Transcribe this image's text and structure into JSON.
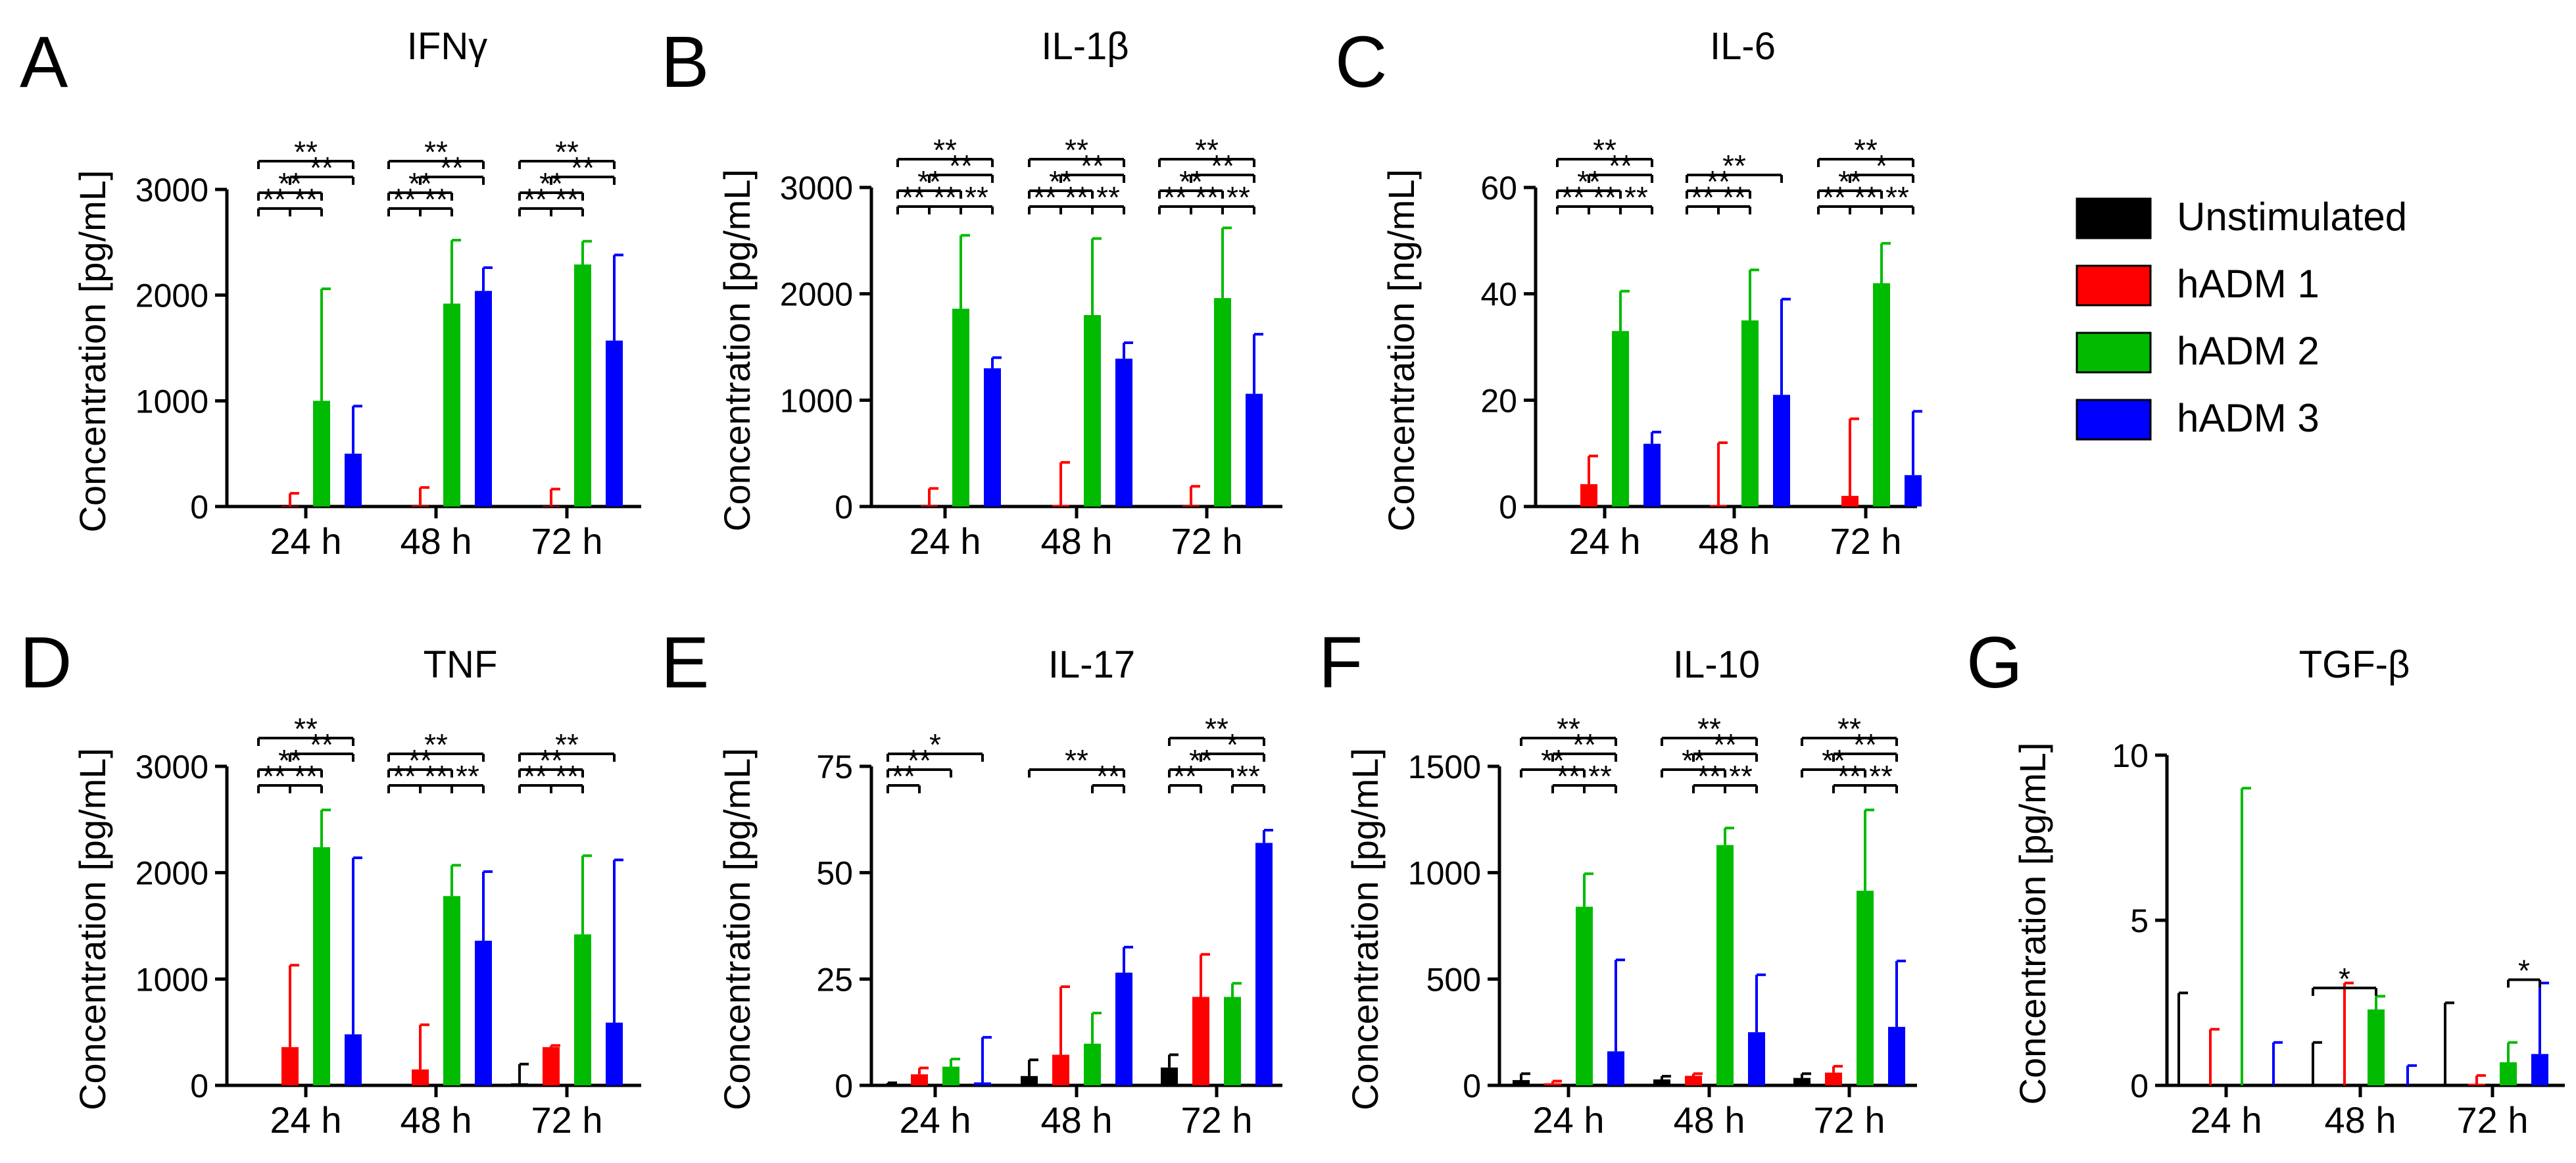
{
  "colors": {
    "unstimulated": "#000000",
    "hadm1": "#ff0000",
    "hadm2": "#00bb00",
    "hadm3": "#0000ff"
  },
  "legend": {
    "items": [
      {
        "label": "Unstimulated",
        "color_key": "unstimulated"
      },
      {
        "label": "hADM 1",
        "color_key": "hadm1"
      },
      {
        "label": "hADM 2",
        "color_key": "hadm2"
      },
      {
        "label": "hADM 3",
        "color_key": "hadm3"
      }
    ]
  },
  "chart_data": [
    {
      "panel": "A",
      "title": "IFNγ",
      "type": "bar",
      "ylabel": "Concentration [pg/mL]",
      "ylim": [
        0,
        3000
      ],
      "yticks": [
        0,
        1000,
        2000,
        3000
      ],
      "categories": [
        "24 h",
        "48 h",
        "72 h"
      ],
      "series": [
        {
          "name": "Unstimulated",
          "values": [
            0,
            0,
            0
          ],
          "errors": [
            0,
            0,
            0
          ]
        },
        {
          "name": "hADM 1",
          "values": [
            5,
            10,
            5
          ],
          "errors": [
            120,
            170,
            160
          ]
        },
        {
          "name": "hADM 2",
          "values": [
            1000,
            1920,
            2290
          ],
          "errors": [
            1060,
            600,
            220
          ]
        },
        {
          "name": "hADM 3",
          "values": [
            500,
            2040,
            1570
          ],
          "errors": [
            450,
            220,
            810
          ]
        }
      ],
      "significance": [
        {
          "group": 0,
          "from": 0,
          "to": 3,
          "label": "**"
        },
        {
          "group": 0,
          "from": 0,
          "to": 2,
          "label": "**"
        },
        {
          "group": 0,
          "from": 1,
          "to": 3,
          "label": "**"
        },
        {
          "group": 0,
          "from": 1,
          "to": 2,
          "label": "**"
        },
        {
          "group": 0,
          "from": 0,
          "to": 1,
          "label": "**"
        },
        {
          "group": 1,
          "from": 0,
          "to": 3,
          "label": "**"
        },
        {
          "group": 1,
          "from": 0,
          "to": 2,
          "label": "**"
        },
        {
          "group": 1,
          "from": 1,
          "to": 3,
          "label": "**"
        },
        {
          "group": 1,
          "from": 1,
          "to": 2,
          "label": "**"
        },
        {
          "group": 1,
          "from": 0,
          "to": 1,
          "label": "**"
        },
        {
          "group": 2,
          "from": 0,
          "to": 3,
          "label": "**"
        },
        {
          "group": 2,
          "from": 0,
          "to": 2,
          "label": "**"
        },
        {
          "group": 2,
          "from": 1,
          "to": 3,
          "label": "**"
        },
        {
          "group": 2,
          "from": 1,
          "to": 2,
          "label": "**"
        },
        {
          "group": 2,
          "from": 0,
          "to": 1,
          "label": "**"
        }
      ]
    },
    {
      "panel": "B",
      "title": "IL-1β",
      "type": "bar",
      "ylabel": "Concentration [pg/mL]",
      "ylim": [
        0,
        3000
      ],
      "yticks": [
        0,
        1000,
        2000,
        3000
      ],
      "categories": [
        "24 h",
        "48 h",
        "72 h"
      ],
      "series": [
        {
          "name": "Unstimulated",
          "values": [
            0,
            0,
            0
          ],
          "errors": [
            0,
            0,
            0
          ]
        },
        {
          "name": "hADM 1",
          "values": [
            10,
            15,
            10
          ],
          "errors": [
            160,
            400,
            180
          ]
        },
        {
          "name": "hADM 2",
          "values": [
            1860,
            1800,
            1960
          ],
          "errors": [
            690,
            720,
            660
          ]
        },
        {
          "name": "hADM 3",
          "values": [
            1300,
            1390,
            1060
          ],
          "errors": [
            100,
            150,
            560
          ]
        }
      ],
      "significance": [
        {
          "group": 0,
          "from": 0,
          "to": 3,
          "label": "**"
        },
        {
          "group": 0,
          "from": 0,
          "to": 2,
          "label": "**"
        },
        {
          "group": 0,
          "from": 1,
          "to": 3,
          "label": "**"
        },
        {
          "group": 0,
          "from": 1,
          "to": 2,
          "label": "**"
        },
        {
          "group": 0,
          "from": 0,
          "to": 1,
          "label": "**"
        },
        {
          "group": 0,
          "from": 2,
          "to": 3,
          "label": "**"
        },
        {
          "group": 1,
          "from": 0,
          "to": 3,
          "label": "**"
        },
        {
          "group": 1,
          "from": 0,
          "to": 2,
          "label": "**"
        },
        {
          "group": 1,
          "from": 1,
          "to": 3,
          "label": "**"
        },
        {
          "group": 1,
          "from": 1,
          "to": 2,
          "label": "**"
        },
        {
          "group": 1,
          "from": 0,
          "to": 1,
          "label": "**"
        },
        {
          "group": 1,
          "from": 2,
          "to": 3,
          "label": "**"
        },
        {
          "group": 2,
          "from": 0,
          "to": 3,
          "label": "**"
        },
        {
          "group": 2,
          "from": 0,
          "to": 2,
          "label": "**"
        },
        {
          "group": 2,
          "from": 1,
          "to": 3,
          "label": "**"
        },
        {
          "group": 2,
          "from": 1,
          "to": 2,
          "label": "**"
        },
        {
          "group": 2,
          "from": 0,
          "to": 1,
          "label": "**"
        },
        {
          "group": 2,
          "from": 2,
          "to": 3,
          "label": "**"
        }
      ]
    },
    {
      "panel": "C",
      "title": "IL-6",
      "type": "bar",
      "ylabel": "Concentration [ng/mL]",
      "ylim": [
        0,
        60
      ],
      "yticks": [
        0,
        20,
        40,
        60
      ],
      "categories": [
        "24 h",
        "48 h",
        "72 h"
      ],
      "series": [
        {
          "name": "Unstimulated",
          "values": [
            0,
            0,
            0
          ],
          "errors": [
            0,
            0,
            0
          ]
        },
        {
          "name": "hADM 1",
          "values": [
            4.2,
            0.3,
            2.0
          ],
          "errors": [
            5.3,
            11.7,
            14.5
          ]
        },
        {
          "name": "hADM 2",
          "values": [
            33,
            35,
            42
          ],
          "errors": [
            7.5,
            9.5,
            7.5
          ]
        },
        {
          "name": "hADM 3",
          "values": [
            11.8,
            21,
            5.9
          ],
          "errors": [
            2.2,
            18,
            12
          ]
        }
      ],
      "significance": [
        {
          "group": 0,
          "from": 0,
          "to": 3,
          "label": "**"
        },
        {
          "group": 0,
          "from": 0,
          "to": 2,
          "label": "**"
        },
        {
          "group": 0,
          "from": 1,
          "to": 3,
          "label": "**"
        },
        {
          "group": 0,
          "from": 1,
          "to": 2,
          "label": "**"
        },
        {
          "group": 0,
          "from": 0,
          "to": 1,
          "label": "**"
        },
        {
          "group": 0,
          "from": 2,
          "to": 3,
          "label": "**"
        },
        {
          "group": 1,
          "from": 0,
          "to": 3,
          "label": "**"
        },
        {
          "group": 1,
          "from": 0,
          "to": 2,
          "label": "**"
        },
        {
          "group": 1,
          "from": 1,
          "to": 2,
          "label": "**"
        },
        {
          "group": 1,
          "from": 0,
          "to": 1,
          "label": "**"
        },
        {
          "group": 2,
          "from": 0,
          "to": 3,
          "label": "**"
        },
        {
          "group": 2,
          "from": 0,
          "to": 2,
          "label": "**"
        },
        {
          "group": 2,
          "from": 1,
          "to": 3,
          "label": "*"
        },
        {
          "group": 2,
          "from": 1,
          "to": 2,
          "label": "**"
        },
        {
          "group": 2,
          "from": 0,
          "to": 1,
          "label": "**"
        },
        {
          "group": 2,
          "from": 2,
          "to": 3,
          "label": "**"
        }
      ]
    },
    {
      "panel": "D",
      "title": "TNF",
      "type": "bar",
      "ylabel": "Concentration [pg/mL]",
      "ylim": [
        0,
        3000
      ],
      "yticks": [
        0,
        1000,
        2000,
        3000
      ],
      "categories": [
        "24 h",
        "48 h",
        "72 h"
      ],
      "series": [
        {
          "name": "Unstimulated",
          "values": [
            0,
            0,
            20
          ],
          "errors": [
            0,
            0,
            180
          ]
        },
        {
          "name": "hADM 1",
          "values": [
            360,
            150,
            360
          ],
          "errors": [
            770,
            420,
            15
          ]
        },
        {
          "name": "hADM 2",
          "values": [
            2240,
            1780,
            1420
          ],
          "errors": [
            350,
            290,
            740
          ]
        },
        {
          "name": "hADM 3",
          "values": [
            480,
            1360,
            590
          ],
          "errors": [
            1660,
            650,
            1530
          ]
        }
      ],
      "significance": [
        {
          "group": 0,
          "from": 0,
          "to": 3,
          "label": "**"
        },
        {
          "group": 0,
          "from": 0,
          "to": 2,
          "label": "**"
        },
        {
          "group": 0,
          "from": 1,
          "to": 3,
          "label": "**"
        },
        {
          "group": 0,
          "from": 1,
          "to": 2,
          "label": "**"
        },
        {
          "group": 0,
          "from": 0,
          "to": 1,
          "label": "**"
        },
        {
          "group": 1,
          "from": 0,
          "to": 3,
          "label": "**"
        },
        {
          "group": 1,
          "from": 0,
          "to": 2,
          "label": "**"
        },
        {
          "group": 1,
          "from": 1,
          "to": 2,
          "label": "**"
        },
        {
          "group": 1,
          "from": 0,
          "to": 1,
          "label": "**"
        },
        {
          "group": 1,
          "from": 2,
          "to": 3,
          "label": "**"
        },
        {
          "group": 2,
          "from": 0,
          "to": 3,
          "label": "**"
        },
        {
          "group": 2,
          "from": 0,
          "to": 2,
          "label": "**"
        },
        {
          "group": 2,
          "from": 1,
          "to": 2,
          "label": "**"
        },
        {
          "group": 2,
          "from": 0,
          "to": 1,
          "label": "**"
        }
      ]
    },
    {
      "panel": "E",
      "title": "IL-17",
      "type": "bar",
      "ylabel": "Concentration [pg/mL]",
      "ylim": [
        0,
        75
      ],
      "yticks": [
        0,
        25,
        50,
        75
      ],
      "categories": [
        "24 h",
        "48 h",
        "72 h"
      ],
      "series": [
        {
          "name": "Unstimulated",
          "values": [
            0.3,
            2.2,
            4.2
          ],
          "errors": [
            0.3,
            3.8,
            3.0
          ]
        },
        {
          "name": "hADM 1",
          "values": [
            2.6,
            7.2,
            20.8
          ],
          "errors": [
            1.5,
            16,
            10
          ]
        },
        {
          "name": "hADM 2",
          "values": [
            4.4,
            9.8,
            20.8
          ],
          "errors": [
            1.8,
            7.2,
            3.2
          ]
        },
        {
          "name": "hADM 3",
          "values": [
            0.7,
            26.5,
            57
          ],
          "errors": [
            10.6,
            6,
            3
          ]
        }
      ],
      "significance": [
        {
          "group": 0,
          "from": 0,
          "to": 3,
          "label": "*"
        },
        {
          "group": 0,
          "from": 0,
          "to": 2,
          "label": "**"
        },
        {
          "group": 0,
          "from": 0,
          "to": 1,
          "label": "**"
        },
        {
          "group": 1,
          "from": 0,
          "to": 3,
          "label": "**"
        },
        {
          "group": 1,
          "from": 2,
          "to": 3,
          "label": "**"
        },
        {
          "group": 2,
          "from": 0,
          "to": 3,
          "label": "**"
        },
        {
          "group": 2,
          "from": 0,
          "to": 2,
          "label": "**"
        },
        {
          "group": 2,
          "from": 1,
          "to": 3,
          "label": "*"
        },
        {
          "group": 2,
          "from": 0,
          "to": 1,
          "label": "**"
        },
        {
          "group": 2,
          "from": 2,
          "to": 3,
          "label": "**"
        }
      ]
    },
    {
      "panel": "F",
      "title": "IL-10",
      "type": "bar",
      "ylabel": "Concentration [pg/mL]",
      "ylim": [
        0,
        1500
      ],
      "yticks": [
        0,
        500,
        1000,
        1500
      ],
      "categories": [
        "24 h",
        "48 h",
        "72 h"
      ],
      "series": [
        {
          "name": "Unstimulated",
          "values": [
            25,
            28,
            35
          ],
          "errors": [
            30,
            15,
            20
          ]
        },
        {
          "name": "hADM 1",
          "values": [
            10,
            45,
            60
          ],
          "errors": [
            10,
            10,
            30
          ]
        },
        {
          "name": "hADM 2",
          "values": [
            840,
            1130,
            915
          ],
          "errors": [
            155,
            80,
            380
          ]
        },
        {
          "name": "hADM 3",
          "values": [
            160,
            250,
            275
          ],
          "errors": [
            430,
            270,
            310
          ]
        }
      ],
      "significance": [
        {
          "group": 0,
          "from": 0,
          "to": 3,
          "label": "**"
        },
        {
          "group": 0,
          "from": 0,
          "to": 2,
          "label": "**"
        },
        {
          "group": 0,
          "from": 1,
          "to": 3,
          "label": "**"
        },
        {
          "group": 0,
          "from": 1,
          "to": 2,
          "label": "**"
        },
        {
          "group": 0,
          "from": 2,
          "to": 3,
          "label": "**"
        },
        {
          "group": 1,
          "from": 0,
          "to": 3,
          "label": "**"
        },
        {
          "group": 1,
          "from": 0,
          "to": 2,
          "label": "**"
        },
        {
          "group": 1,
          "from": 1,
          "to": 3,
          "label": "**"
        },
        {
          "group": 1,
          "from": 1,
          "to": 2,
          "label": "**"
        },
        {
          "group": 1,
          "from": 2,
          "to": 3,
          "label": "**"
        },
        {
          "group": 2,
          "from": 0,
          "to": 3,
          "label": "**"
        },
        {
          "group": 2,
          "from": 0,
          "to": 2,
          "label": "**"
        },
        {
          "group": 2,
          "from": 1,
          "to": 3,
          "label": "**"
        },
        {
          "group": 2,
          "from": 1,
          "to": 2,
          "label": "**"
        },
        {
          "group": 2,
          "from": 2,
          "to": 3,
          "label": "**"
        }
      ]
    },
    {
      "panel": "G",
      "title": "TGF-β",
      "type": "bar",
      "ylabel": "Concentration [pg/mL]",
      "ylim": [
        0,
        10
      ],
      "yticks": [
        0,
        5,
        10
      ],
      "categories": [
        "24 h",
        "48 h",
        "72 h"
      ],
      "series": [
        {
          "name": "Unstimulated",
          "values": [
            0,
            0,
            0
          ],
          "errors": [
            2.8,
            1.3,
            2.5
          ]
        },
        {
          "name": "hADM 1",
          "values": [
            0,
            0,
            0.05
          ],
          "errors": [
            1.7,
            3.1,
            0.25
          ]
        },
        {
          "name": "hADM 2",
          "values": [
            0,
            2.3,
            0.7
          ],
          "errors": [
            9.0,
            0.4,
            0.6
          ]
        },
        {
          "name": "hADM 3",
          "values": [
            0,
            0,
            0.95
          ],
          "errors": [
            1.3,
            0.6,
            2.15
          ]
        }
      ],
      "significance": [
        {
          "group": 1,
          "from": 0,
          "to": 2,
          "label": "*"
        },
        {
          "group": 2,
          "from": 2,
          "to": 3,
          "label": "*"
        }
      ]
    }
  ]
}
